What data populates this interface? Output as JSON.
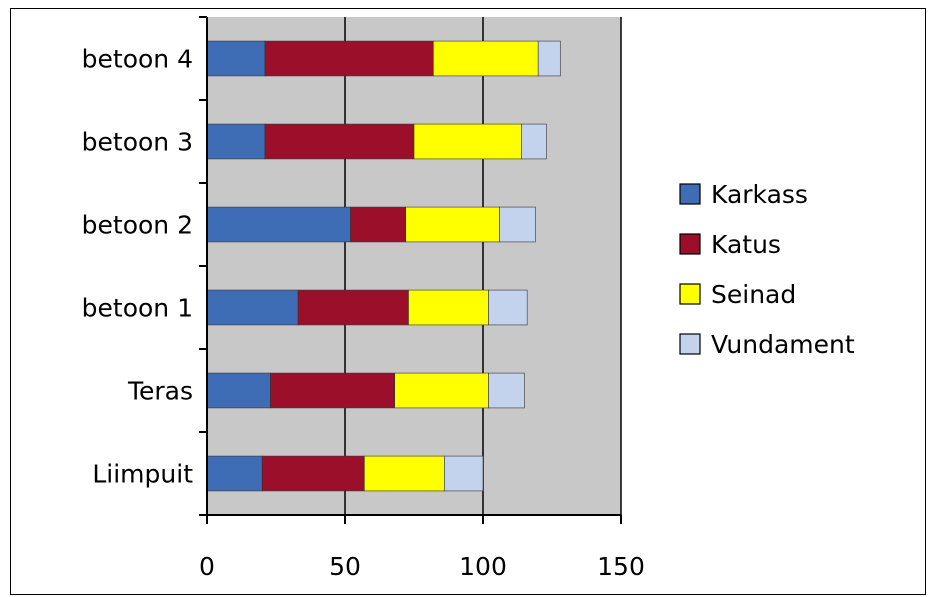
{
  "chart_data": {
    "type": "bar",
    "orientation": "horizontal",
    "stacked": true,
    "categories": [
      "betoon 4",
      "betoon 3",
      "betoon 2",
      "betoon 1",
      "Teras",
      "Liimpuit"
    ],
    "series": [
      {
        "name": "Karkass",
        "color": "#3e6db5",
        "values": [
          21,
          21,
          52,
          33,
          23,
          20
        ]
      },
      {
        "name": "Katus",
        "color": "#9b0f2a",
        "values": [
          61,
          54,
          20,
          40,
          45,
          37
        ]
      },
      {
        "name": "Seinad",
        "color": "#ffff00",
        "values": [
          38,
          39,
          34,
          29,
          34,
          29
        ]
      },
      {
        "name": "Vundament",
        "color": "#c3d3ee",
        "values": [
          8,
          9,
          13,
          14,
          13,
          14
        ]
      }
    ],
    "xlim": [
      0,
      150
    ],
    "xticks": [
      "0",
      "50",
      "100",
      "150"
    ],
    "grid": true,
    "plot_background": "#c8c8c8",
    "legend_position": "right"
  }
}
